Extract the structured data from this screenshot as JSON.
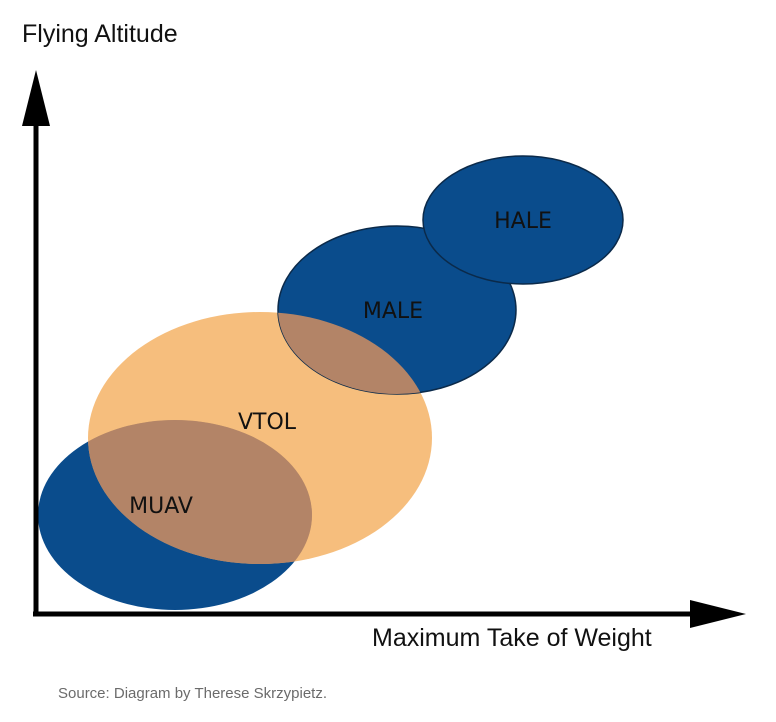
{
  "axes": {
    "y_label": "Flying Altitude",
    "x_label": "Maximum Take of Weight"
  },
  "categories": [
    {
      "name": "MUAV",
      "color": "#0a4c8c"
    },
    {
      "name": "VTOL",
      "color": "#f4b366"
    },
    {
      "name": "MALE",
      "color": "#0a4c8c"
    },
    {
      "name": "HALE",
      "color": "#0a4c8c"
    }
  ],
  "colors": {
    "blue_region": "#0a4c8c",
    "orange_region": "#f4b366",
    "overlap_region": "#b38467",
    "axis": "#000000"
  },
  "source_text": "Source: Diagram by Therese Skrzypietz."
}
